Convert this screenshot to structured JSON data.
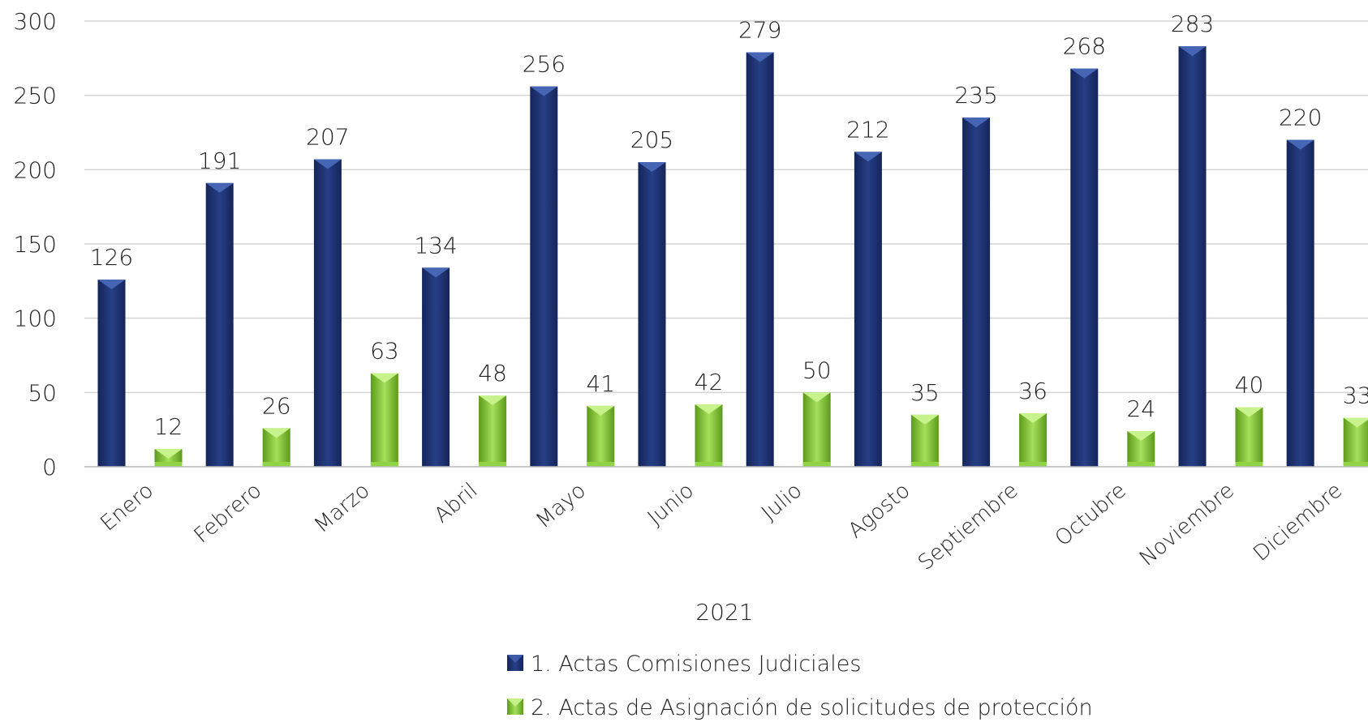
{
  "chart_data": {
    "type": "bar",
    "categories": [
      "Enero",
      "Febrero",
      "Marzo",
      "Abril",
      "Mayo",
      "Junio",
      "Julio",
      "Agosto",
      "Septiembre",
      "Octubre",
      "Noviembre",
      "Diciembre"
    ],
    "series": [
      {
        "name": "1. Actas Comisiones Judiciales",
        "values": [
          126,
          191,
          207,
          134,
          256,
          205,
          279,
          212,
          235,
          268,
          283,
          220
        ],
        "color": "#1f3470"
      },
      {
        "name": "2. Actas de Asignación de solicitudes de protección",
        "values": [
          12,
          26,
          63,
          48,
          41,
          42,
          50,
          35,
          36,
          24,
          40,
          33
        ],
        "color": "#7fc12f"
      }
    ],
    "y_ticks": [
      "0",
      "50",
      "100",
      "150",
      "200",
      "250",
      "300"
    ],
    "ylim": [
      0,
      300
    ],
    "xlabel": "2021",
    "ylabel": "",
    "grid": true,
    "legend_position": "bottom"
  }
}
